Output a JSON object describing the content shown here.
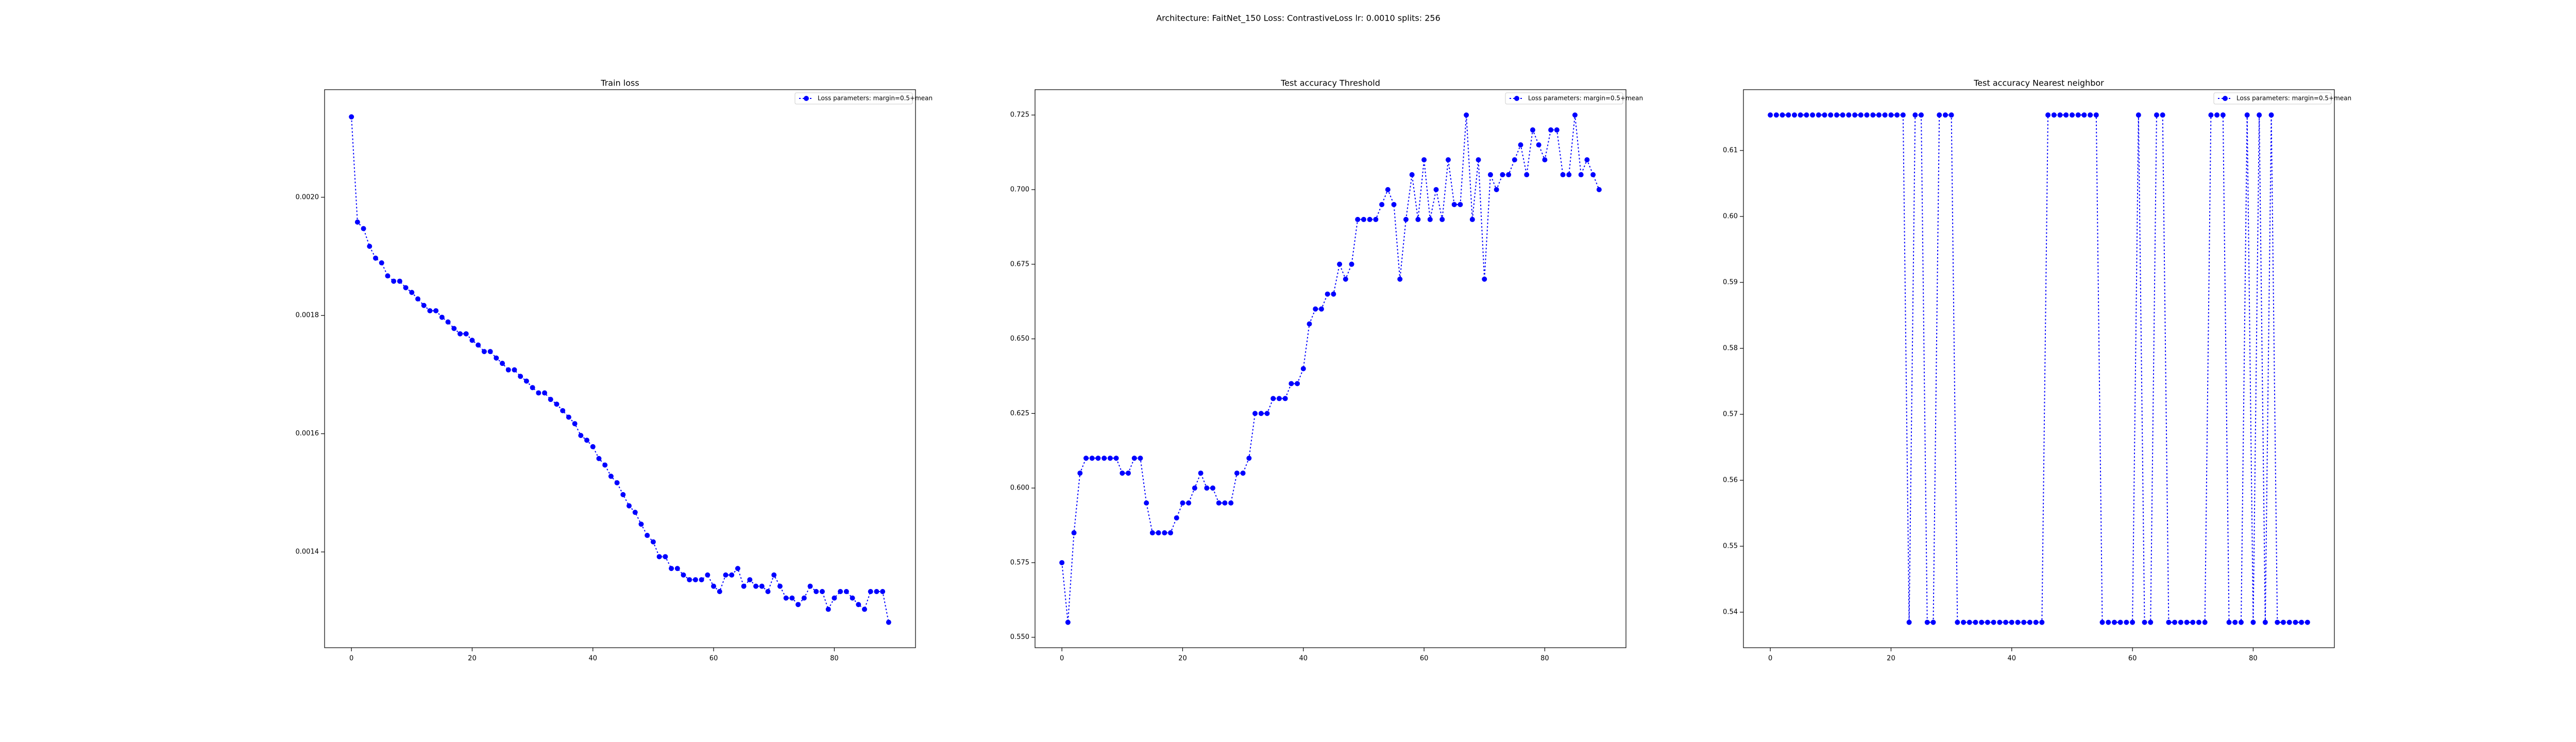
{
  "suptitle": "Architecture: FaitNet_150 Loss: ContrastiveLoss lr: 0.0010 splits: 256",
  "chart_data": [
    {
      "type": "line",
      "title": "Train loss",
      "legend": "upper right",
      "marker": "o",
      "linestyle": "dotted",
      "x": [
        0,
        1,
        2,
        3,
        4,
        5,
        6,
        7,
        8,
        9,
        10,
        11,
        12,
        13,
        14,
        15,
        16,
        17,
        18,
        19,
        20,
        21,
        22,
        23,
        24,
        25,
        26,
        27,
        28,
        29,
        30,
        31,
        32,
        33,
        34,
        35,
        36,
        37,
        38,
        39,
        40,
        41,
        42,
        43,
        44,
        45,
        46,
        47,
        48,
        49,
        50,
        51,
        52,
        53,
        54,
        55,
        56,
        57,
        58,
        59,
        60,
        61,
        62,
        63,
        64,
        65,
        66,
        67,
        68,
        69,
        70,
        71,
        72,
        73,
        74,
        75,
        76,
        77,
        78,
        79,
        80,
        81,
        82,
        83,
        84,
        85,
        86,
        87,
        88,
        89
      ],
      "series": [
        {
          "name": "Loss parameters: margin=0.5+mean",
          "color": "#0000ff",
          "values": [
            0.002136,
            0.001958,
            0.001947,
            0.001917,
            0.001897,
            0.001889,
            0.001867,
            0.001858,
            0.001858,
            0.001847,
            0.001839,
            0.001828,
            0.001817,
            0.001808,
            0.001808,
            0.001797,
            0.001789,
            0.001778,
            0.001769,
            0.001769,
            0.001758,
            0.00175,
            0.001739,
            0.001739,
            0.001728,
            0.001719,
            0.001708,
            0.001708,
            0.001697,
            0.001689,
            0.001678,
            0.001669,
            0.001669,
            0.001658,
            0.00165,
            0.001639,
            0.001628,
            0.001617,
            0.001597,
            0.001589,
            0.001578,
            0.001558,
            0.001547,
            0.001528,
            0.001517,
            0.001497,
            0.001478,
            0.001467,
            0.001447,
            0.001428,
            0.001417,
            0.001392,
            0.001392,
            0.001372,
            0.001372,
            0.001361,
            0.001353,
            0.001353,
            0.001353,
            0.001361,
            0.001342,
            0.001333,
            0.001361,
            0.001361,
            0.001372,
            0.001342,
            0.001353,
            0.001342,
            0.001342,
            0.001333,
            0.001361,
            0.001342,
            0.001322,
            0.001322,
            0.001311,
            0.001322,
            0.001342,
            0.001333,
            0.001333,
            0.001303,
            0.001322,
            0.001333,
            0.001333,
            0.001322,
            0.001311,
            0.001303,
            0.001333,
            0.001333,
            0.001333,
            0.001281
          ]
        }
      ],
      "xlim": [
        -4.45,
        93.45
      ],
      "xticks": [
        0,
        20,
        40,
        60,
        80
      ],
      "ylim": [
        0.001238,
        0.002182
      ],
      "yticks": [
        0.0014,
        0.0016,
        0.0018,
        {
          "value": 0.002,
          "label": "0.0020"
        }
      ]
    },
    {
      "type": "line",
      "title": "Test accuracy Threshold",
      "legend": "upper right",
      "marker": "o",
      "linestyle": "dotted",
      "x": [
        0,
        1,
        2,
        3,
        4,
        5,
        6,
        7,
        8,
        9,
        10,
        11,
        12,
        13,
        14,
        15,
        16,
        17,
        18,
        19,
        20,
        21,
        22,
        23,
        24,
        25,
        26,
        27,
        28,
        29,
        30,
        31,
        32,
        33,
        34,
        35,
        36,
        37,
        38,
        39,
        40,
        41,
        42,
        43,
        44,
        45,
        46,
        47,
        48,
        49,
        50,
        51,
        52,
        53,
        54,
        55,
        56,
        57,
        58,
        59,
        60,
        61,
        62,
        63,
        64,
        65,
        66,
        67,
        68,
        69,
        70,
        71,
        72,
        73,
        74,
        75,
        76,
        77,
        78,
        79,
        80,
        81,
        82,
        83,
        84,
        85,
        86,
        87,
        88,
        89
      ],
      "series": [
        {
          "name": "Loss parameters: margin=0.5+mean",
          "color": "#0000ff",
          "values": [
            0.575,
            0.555,
            0.585,
            0.605,
            0.61,
            0.61,
            0.61,
            0.61,
            0.61,
            0.61,
            0.605,
            0.605,
            0.61,
            0.61,
            0.595,
            0.585,
            0.585,
            0.585,
            0.585,
            0.59,
            0.595,
            0.595,
            0.6,
            0.605,
            0.6,
            0.6,
            0.595,
            0.595,
            0.595,
            0.605,
            0.605,
            0.61,
            0.625,
            0.625,
            0.625,
            0.63,
            0.63,
            0.63,
            0.635,
            0.635,
            0.64,
            0.655,
            0.66,
            0.66,
            0.665,
            0.665,
            0.675,
            0.67,
            0.675,
            0.69,
            0.69,
            0.69,
            0.69,
            0.695,
            0.7,
            0.695,
            0.67,
            0.69,
            0.705,
            0.69,
            0.71,
            0.69,
            0.7,
            0.69,
            0.71,
            0.695,
            0.695,
            0.725,
            0.69,
            0.71,
            0.67,
            0.705,
            0.7,
            0.705,
            0.705,
            0.71,
            0.715,
            0.705,
            0.72,
            0.715,
            0.71,
            0.72,
            0.72,
            0.705,
            0.705,
            0.725,
            0.705,
            0.71,
            0.705,
            0.7
          ]
        }
      ],
      "xlim": [
        -4.45,
        93.45
      ],
      "xticks": [
        0,
        20,
        40,
        60,
        80
      ],
      "ylim": [
        0.5465,
        0.7335
      ],
      "yticks": [
        {
          "value": 0.55,
          "label": "0.550"
        },
        0.575,
        {
          "value": 0.6,
          "label": "0.600"
        },
        0.625,
        {
          "value": 0.65,
          "label": "0.650"
        },
        0.675,
        {
          "value": 0.7,
          "label": "0.700"
        },
        0.725
      ]
    },
    {
      "type": "line",
      "title": "Test accuracy Nearest neighbor",
      "legend": "upper right",
      "marker": "o",
      "linestyle": "dotted",
      "x": [
        0,
        1,
        2,
        3,
        4,
        5,
        6,
        7,
        8,
        9,
        10,
        11,
        12,
        13,
        14,
        15,
        16,
        17,
        18,
        19,
        20,
        21,
        22,
        23,
        24,
        25,
        26,
        27,
        28,
        29,
        30,
        31,
        32,
        33,
        34,
        35,
        36,
        37,
        38,
        39,
        40,
        41,
        42,
        43,
        44,
        45,
        46,
        47,
        48,
        49,
        50,
        51,
        52,
        53,
        54,
        55,
        56,
        57,
        58,
        59,
        60,
        61,
        62,
        63,
        64,
        65,
        66,
        67,
        68,
        69,
        70,
        71,
        72,
        73,
        74,
        75,
        76,
        77,
        78,
        79,
        80,
        81,
        82,
        83,
        84,
        85,
        86,
        87,
        88,
        89
      ],
      "series": [
        {
          "name": "Loss parameters: margin=0.5+mean",
          "color": "#0000ff",
          "values": [
            0.615385,
            0.615385,
            0.615385,
            0.615385,
            0.615385,
            0.615385,
            0.615385,
            0.615385,
            0.615385,
            0.615385,
            0.615385,
            0.615385,
            0.615385,
            0.615385,
            0.615385,
            0.615385,
            0.615385,
            0.615385,
            0.615385,
            0.615385,
            0.615385,
            0.615385,
            0.615385,
            0.538462,
            0.615385,
            0.615385,
            0.538462,
            0.538462,
            0.615385,
            0.615385,
            0.615385,
            0.538462,
            0.538462,
            0.538462,
            0.538462,
            0.538462,
            0.538462,
            0.538462,
            0.538462,
            0.538462,
            0.538462,
            0.538462,
            0.538462,
            0.538462,
            0.538462,
            0.538462,
            0.615385,
            0.615385,
            0.615385,
            0.615385,
            0.615385,
            0.615385,
            0.615385,
            0.615385,
            0.615385,
            0.538462,
            0.538462,
            0.538462,
            0.538462,
            0.538462,
            0.538462,
            0.615385,
            0.538462,
            0.538462,
            0.615385,
            0.615385,
            0.538462,
            0.538462,
            0.538462,
            0.538462,
            0.538462,
            0.538462,
            0.538462,
            0.615385,
            0.615385,
            0.615385,
            0.538462,
            0.538462,
            0.538462,
            0.615385,
            0.538462,
            0.615385,
            0.538462,
            0.615385,
            0.538462,
            0.538462,
            0.538462,
            0.538462,
            0.538462,
            0.538462
          ]
        }
      ],
      "xlim": [
        -4.45,
        93.45
      ],
      "xticks": [
        0,
        20,
        40,
        60,
        80
      ],
      "ylim": [
        0.534614,
        0.619226
      ],
      "yticks": [
        0.54,
        0.55,
        0.56,
        0.57,
        0.58,
        0.59,
        {
          "value": 0.6,
          "label": "0.60"
        },
        0.61
      ]
    }
  ]
}
